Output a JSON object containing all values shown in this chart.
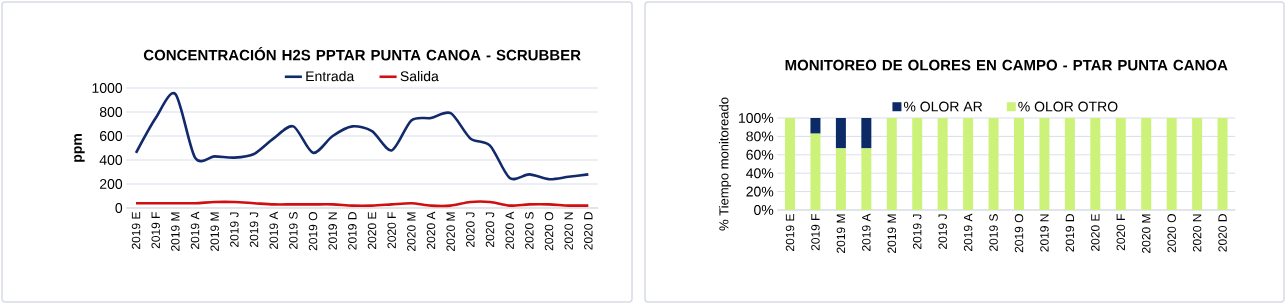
{
  "chart_data": [
    {
      "type": "line",
      "title": "CONCENTRACIÓN H2S PPTAR PUNTA CANOA - SCRUBBER",
      "ylabel": "ppm",
      "categories": [
        "2019 E",
        "2019 F",
        "2019 M",
        "2019 A",
        "2019 M",
        "2019 J",
        "2019 J",
        "2019 A",
        "2019 S",
        "2019 O",
        "2019 N",
        "2019 D",
        "2020 E",
        "2020 F",
        "2020 M",
        "2020 A",
        "2020 M",
        "2020 J",
        "2020 J",
        "2020 A",
        "2020 S",
        "2020 O",
        "2020 N",
        "2020 D"
      ],
      "series": [
        {
          "name": "Entrada",
          "color": "#12296b",
          "values": [
            460,
            750,
            950,
            420,
            430,
            420,
            450,
            580,
            680,
            460,
            600,
            680,
            640,
            480,
            730,
            750,
            790,
            580,
            520,
            250,
            280,
            240,
            260,
            280
          ]
        },
        {
          "name": "Salida",
          "color": "#d01010",
          "values": [
            40,
            40,
            40,
            40,
            50,
            50,
            40,
            30,
            30,
            30,
            30,
            20,
            20,
            30,
            40,
            20,
            20,
            50,
            50,
            20,
            30,
            30,
            20,
            20
          ]
        }
      ],
      "ylim": [
        0,
        1000
      ],
      "yticks": [
        0,
        200,
        400,
        600,
        800,
        1000
      ],
      "grid": "y",
      "legend": "top",
      "line_style": "solid"
    },
    {
      "type": "bar",
      "stacked": true,
      "title": "MONITOREO DE OLORES EN CAMPO - PTAR PUNTA CANOA",
      "ylabel": "% Tiempo monitoreado",
      "categories": [
        "2019 E",
        "2019 F",
        "2019 M",
        "2019 A",
        "2019 M",
        "2019 J",
        "2019 J",
        "2019 A",
        "2019 S",
        "2019 O",
        "2019 N",
        "2019 D",
        "2020 E",
        "2020 F",
        "2020 M",
        "2020 O",
        "2020 N",
        "2020 D"
      ],
      "series": [
        {
          "name": "% OLOR OTRO",
          "color": "#ccf27a",
          "values": [
            100,
            83,
            67,
            67,
            100,
            100,
            100,
            100,
            100,
            100,
            100,
            100,
            100,
            100,
            100,
            100,
            100,
            100
          ]
        },
        {
          "name": "% OLOR AR",
          "color": "#0b2a66",
          "values": [
            0,
            17,
            33,
            33,
            0,
            0,
            0,
            0,
            0,
            0,
            0,
            0,
            0,
            0,
            0,
            0,
            0,
            0
          ]
        }
      ],
      "ylim": [
        0,
        100
      ],
      "yticks": [
        {
          "value": 0,
          "label": "0%"
        },
        {
          "value": 20,
          "label": "20%"
        },
        {
          "value": 40,
          "label": "40%"
        },
        {
          "value": 60,
          "label": "60%"
        },
        {
          "value": 80,
          "label": "80%"
        },
        {
          "value": 100,
          "label": "100%"
        }
      ],
      "grid": "y",
      "legend": "top"
    }
  ]
}
